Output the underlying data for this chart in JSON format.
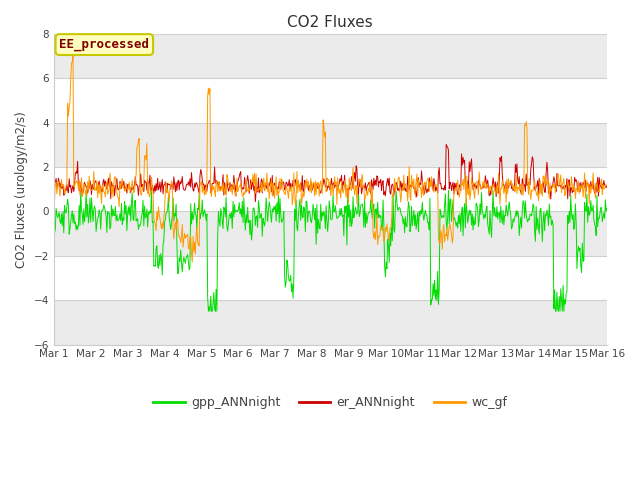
{
  "title": "CO2 Fluxes",
  "ylabel": "CO2 Fluxes (urology/m2/s)",
  "ylim": [
    -6,
    8
  ],
  "yticks": [
    -6,
    -4,
    -2,
    0,
    2,
    4,
    6,
    8
  ],
  "x_labels": [
    "Mar 1",
    "Mar 2",
    "Mar 3",
    "Mar 4",
    "Mar 5",
    "Mar 6",
    "Mar 7",
    "Mar 8",
    "Mar 9",
    "Mar 10",
    "Mar 11",
    "Mar 12",
    "Mar 13",
    "Mar 14",
    "Mar 15",
    "Mar 16"
  ],
  "annotation_text": "EE_processed",
  "annotation_color": "#800000",
  "annotation_bg": "#ffffc0",
  "annotation_border": "#c8c800",
  "fig_bg_color": "#ffffff",
  "plot_bg_color": "#ffffff",
  "series": {
    "gpp_ANNnight": {
      "color": "#00dd00",
      "label": "gpp_ANNnight"
    },
    "er_ANNnight": {
      "color": "#cc0000",
      "label": "er_ANNnight"
    },
    "wc_gf": {
      "color": "#ff9900",
      "label": "wc_gf"
    }
  },
  "n_points": 720,
  "days": 15,
  "seed": 42
}
